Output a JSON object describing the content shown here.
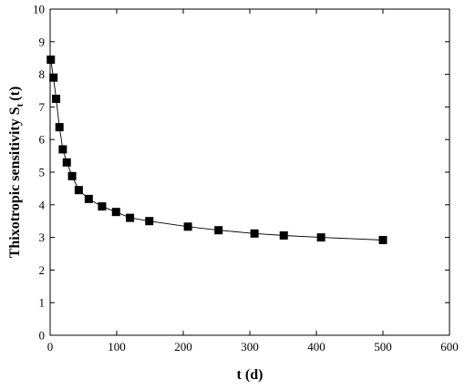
{
  "chart_data": {
    "type": "scatter",
    "xlabel": "t (d)",
    "ylabel_main": "Thixotropic sensitivity S",
    "ylabel_sub": "t",
    "ylabel_tail": "(t)",
    "xlim": [
      0,
      600
    ],
    "ylim": [
      0,
      10
    ],
    "x_ticks": [
      0,
      100,
      200,
      300,
      400,
      500,
      600
    ],
    "y_ticks": [
      0,
      1,
      2,
      3,
      4,
      5,
      6,
      7,
      8,
      9,
      10
    ],
    "grid": false,
    "legend": "none",
    "marker": "square",
    "marker_color": "#000000",
    "line_color": "#000000",
    "series": [
      {
        "x": [
          1,
          5,
          9,
          14,
          19,
          25,
          33,
          43,
          58,
          78,
          99,
          120,
          149,
          207,
          253,
          307,
          351,
          407,
          500
        ],
        "y": [
          8.45,
          7.9,
          7.25,
          6.38,
          5.7,
          5.3,
          4.88,
          4.45,
          4.18,
          3.95,
          3.78,
          3.6,
          3.5,
          3.33,
          3.22,
          3.12,
          3.06,
          3.0,
          2.92
        ]
      }
    ]
  }
}
